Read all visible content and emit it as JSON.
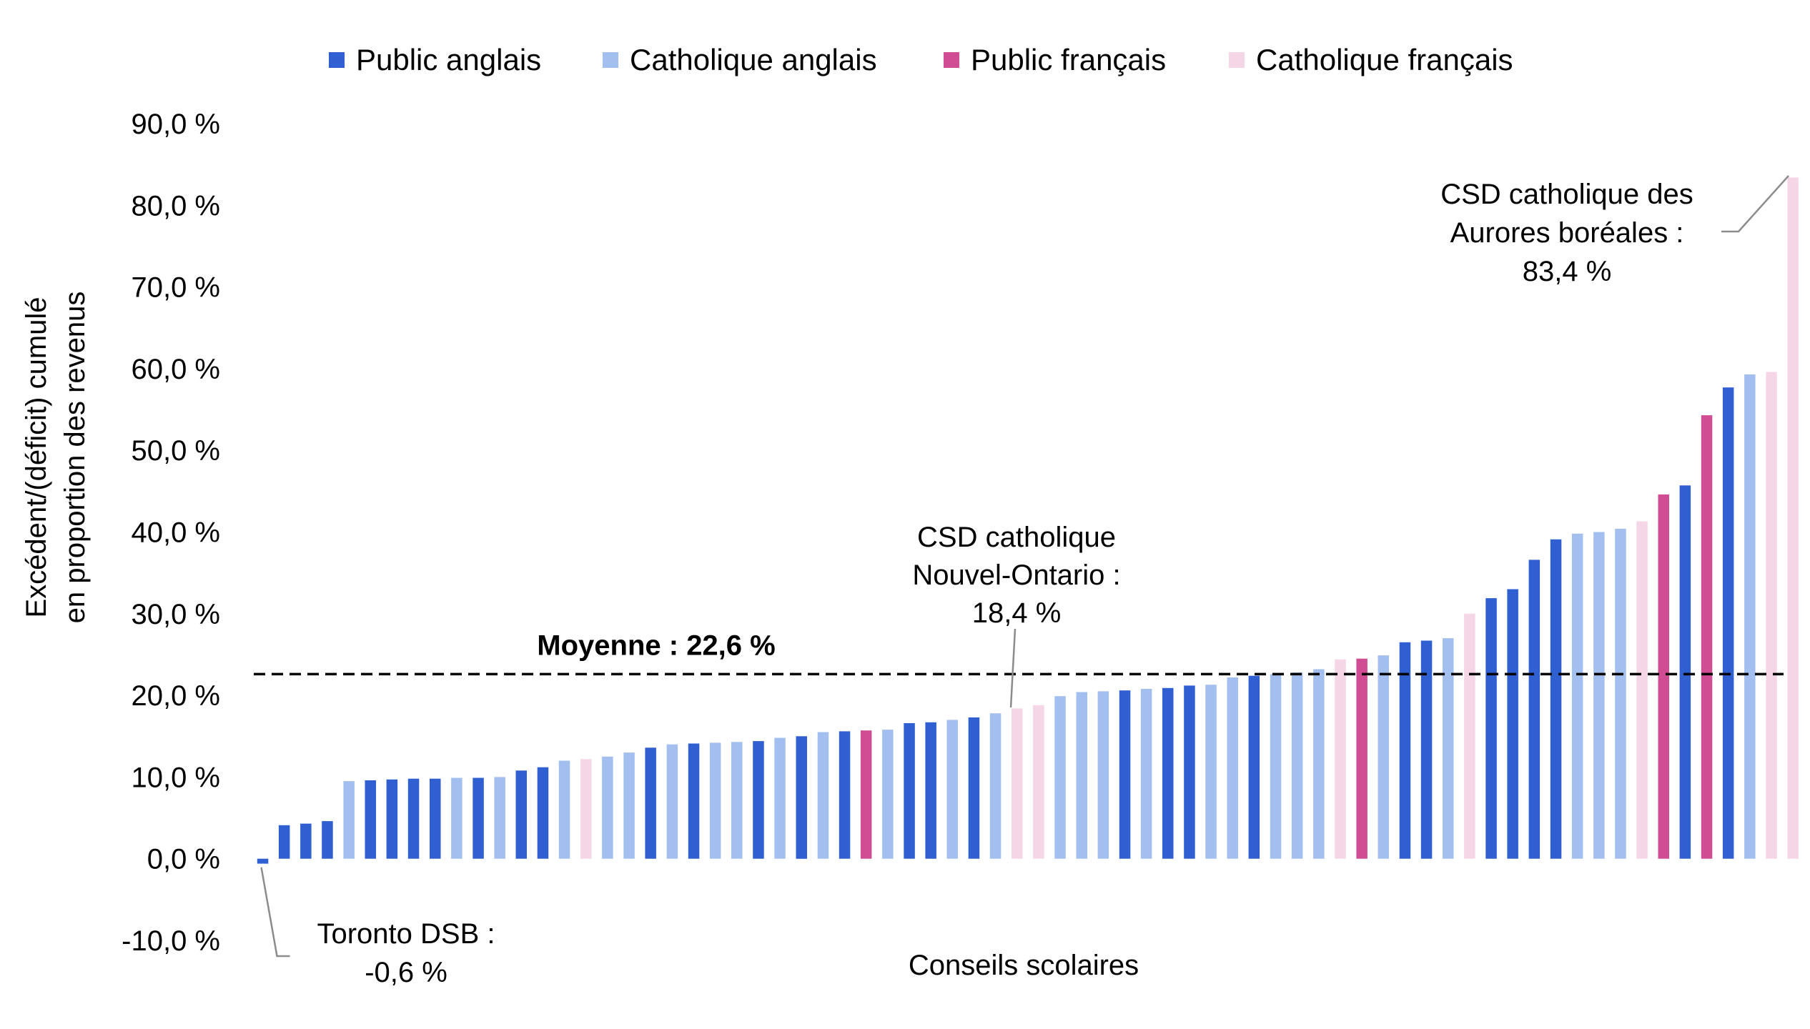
{
  "chart_data": {
    "type": "bar",
    "xlabel": "Conseils scolaires",
    "ylabel_lines": [
      "Excédent/(déficit) cumulé",
      "en proportion des revenus"
    ],
    "ylim": [
      -10,
      90
    ],
    "yticks": [
      90,
      80,
      70,
      60,
      50,
      40,
      30,
      20,
      10,
      0,
      -10
    ],
    "ytick_labels": [
      "90,0 %",
      "80,0 %",
      "70,0 %",
      "60,0 %",
      "50,0 %",
      "40,0 %",
      "30,0 %",
      "20,0 %",
      "10,0 %",
      "0,0 %",
      "-10,0 %"
    ],
    "legend_position": "top",
    "legend": [
      {
        "key": "PA",
        "label": "Public anglais",
        "color": "#2F5FD0"
      },
      {
        "key": "CA",
        "label": "Catholique anglais",
        "color": "#A3BFF0"
      },
      {
        "key": "PF",
        "label": "Public français",
        "color": "#D14D93"
      },
      {
        "key": "CF",
        "label": "Catholique français",
        "color": "#F5D6E6"
      }
    ],
    "values": [
      -0.6,
      4.1,
      4.3,
      4.6,
      9.5,
      9.6,
      9.7,
      9.8,
      9.8,
      9.9,
      9.9,
      10.0,
      10.8,
      11.2,
      12.0,
      12.2,
      12.5,
      13.0,
      13.6,
      14.0,
      14.1,
      14.2,
      14.3,
      14.4,
      14.8,
      15.0,
      15.5,
      15.6,
      15.7,
      15.8,
      16.6,
      16.7,
      17.0,
      17.3,
      17.8,
      18.4,
      18.8,
      19.9,
      20.4,
      20.5,
      20.6,
      20.8,
      20.9,
      21.2,
      21.3,
      22.2,
      22.4,
      22.6,
      22.8,
      23.2,
      24.4,
      24.5,
      24.9,
      26.5,
      26.7,
      27.0,
      30.0,
      31.9,
      33.0,
      36.6,
      39.1,
      39.8,
      40.0,
      40.4,
      41.3,
      44.6,
      45.7,
      54.3,
      57.7,
      59.3,
      59.6,
      83.4
    ],
    "groups": [
      "PA",
      "PA",
      "PA",
      "PA",
      "CA",
      "PA",
      "PA",
      "PA",
      "PA",
      "CA",
      "PA",
      "CA",
      "PA",
      "PA",
      "CA",
      "CF",
      "CA",
      "CA",
      "PA",
      "CA",
      "PA",
      "CA",
      "CA",
      "PA",
      "CA",
      "PA",
      "CA",
      "PA",
      "PF",
      "CA",
      "PA",
      "PA",
      "CA",
      "PA",
      "CA",
      "CF",
      "CF",
      "CA",
      "CA",
      "CA",
      "PA",
      "CA",
      "PA",
      "PA",
      "CA",
      "CA",
      "PA",
      "CA",
      "CA",
      "CA",
      "CF",
      "PF",
      "CA",
      "PA",
      "PA",
      "CA",
      "CF",
      "PA",
      "PA",
      "PA",
      "PA",
      "CA",
      "CA",
      "CA",
      "CF",
      "PF",
      "PA",
      "PF",
      "PA",
      "CA",
      "CF",
      "CF"
    ],
    "average": {
      "value": 22.6,
      "label": "Moyenne : 22,6 %"
    },
    "annotations": [
      {
        "index": 0,
        "lines": [
          "Toronto DSB :",
          "-0,6 %"
        ]
      },
      {
        "index": 35,
        "lines": [
          "CSD catholique",
          "Nouvel-Ontario :",
          "18,4 %"
        ]
      },
      {
        "index": 71,
        "lines": [
          "CSD catholique des",
          "Aurores boréales :",
          "83,4 %"
        ]
      }
    ]
  }
}
